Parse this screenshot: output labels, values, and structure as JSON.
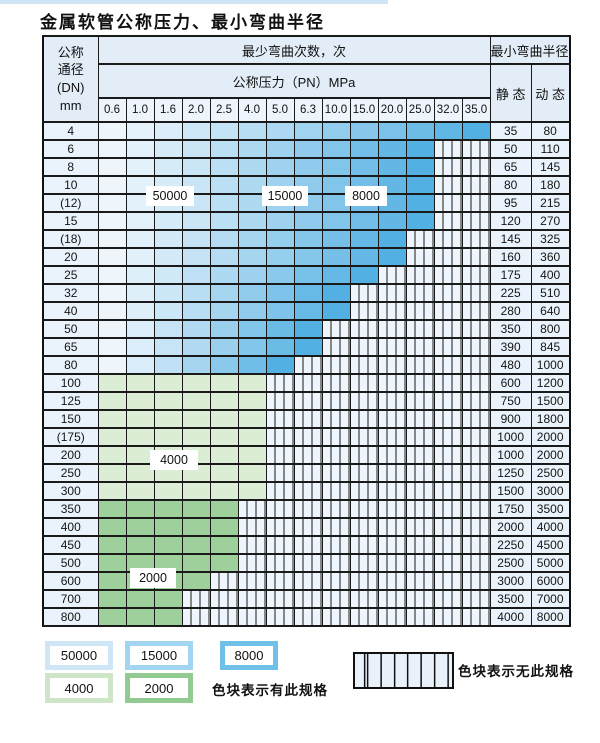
{
  "title": "金属软管公称压力、最小弯曲半径",
  "table": {
    "corner_lines": [
      "公称",
      "通径",
      "(DN)",
      "mm"
    ],
    "cycles_header": "最少弯曲次数，次",
    "pressure_header": "公称压力（PN）MPa",
    "pressure_columns": [
      "0.6",
      "1.0",
      "1.6",
      "2.0",
      "2.5",
      "4.0",
      "5.0",
      "6.3",
      "10.0",
      "15.0",
      "20.0",
      "25.0",
      "32.0",
      "35.0"
    ],
    "radius_header": "最小弯曲半径",
    "static_header": "静 态",
    "dynamic_header": "动 态",
    "rows": [
      {
        "dn": "4",
        "group": "blue",
        "max_pn": "35.0",
        "static": "35",
        "dynamic": "80"
      },
      {
        "dn": "6",
        "group": "blue",
        "max_pn": "25.0",
        "static": "50",
        "dynamic": "110"
      },
      {
        "dn": "8",
        "group": "blue",
        "max_pn": "25.0",
        "static": "65",
        "dynamic": "145"
      },
      {
        "dn": "10",
        "group": "blue",
        "max_pn": "25.0",
        "static": "80",
        "dynamic": "180"
      },
      {
        "dn": "(12)",
        "group": "blue",
        "max_pn": "25.0",
        "static": "95",
        "dynamic": "215"
      },
      {
        "dn": "15",
        "group": "blue",
        "max_pn": "25.0",
        "static": "120",
        "dynamic": "270"
      },
      {
        "dn": "(18)",
        "group": "blue",
        "max_pn": "20.0",
        "static": "145",
        "dynamic": "325"
      },
      {
        "dn": "20",
        "group": "blue",
        "max_pn": "20.0",
        "static": "160",
        "dynamic": "360"
      },
      {
        "dn": "25",
        "group": "blue",
        "max_pn": "15.0",
        "static": "175",
        "dynamic": "400"
      },
      {
        "dn": "32",
        "group": "blue",
        "max_pn": "10.0",
        "static": "225",
        "dynamic": "510"
      },
      {
        "dn": "40",
        "group": "blue",
        "max_pn": "10.0",
        "static": "280",
        "dynamic": "640"
      },
      {
        "dn": "50",
        "group": "blue",
        "max_pn": "6.3",
        "static": "350",
        "dynamic": "800"
      },
      {
        "dn": "65",
        "group": "blue",
        "max_pn": "6.3",
        "static": "390",
        "dynamic": "845"
      },
      {
        "dn": "80",
        "group": "blue",
        "max_pn": "5.0",
        "static": "480",
        "dynamic": "1000"
      },
      {
        "dn": "100",
        "group": "green_4000",
        "max_pn": "4.0",
        "static": "600",
        "dynamic": "1200"
      },
      {
        "dn": "125",
        "group": "green_4000",
        "max_pn": "4.0",
        "static": "750",
        "dynamic": "1500"
      },
      {
        "dn": "150",
        "group": "green_4000",
        "max_pn": "4.0",
        "static": "900",
        "dynamic": "1800"
      },
      {
        "dn": "(175)",
        "group": "green_4000",
        "max_pn": "4.0",
        "static": "1000",
        "dynamic": "2000"
      },
      {
        "dn": "200",
        "group": "green_4000",
        "max_pn": "4.0",
        "static": "1000",
        "dynamic": "2000"
      },
      {
        "dn": "250",
        "group": "green_4000",
        "max_pn": "4.0",
        "static": "1250",
        "dynamic": "2500"
      },
      {
        "dn": "300",
        "group": "green_4000",
        "max_pn": "4.0",
        "static": "1500",
        "dynamic": "3000"
      },
      {
        "dn": "350",
        "group": "green_2000",
        "max_pn": "2.5",
        "static": "1750",
        "dynamic": "3500"
      },
      {
        "dn": "400",
        "group": "green_2000",
        "max_pn": "2.5",
        "static": "2000",
        "dynamic": "4000"
      },
      {
        "dn": "450",
        "group": "green_2000",
        "max_pn": "2.5",
        "static": "2250",
        "dynamic": "4500"
      },
      {
        "dn": "500",
        "group": "green_2000",
        "max_pn": "2.5",
        "static": "2500",
        "dynamic": "5000"
      },
      {
        "dn": "600",
        "group": "green_2000",
        "max_pn": "2.0",
        "static": "3000",
        "dynamic": "6000"
      },
      {
        "dn": "700",
        "group": "green_2000",
        "max_pn": "1.6",
        "static": "3500",
        "dynamic": "7000"
      },
      {
        "dn": "800",
        "group": "green_2000",
        "max_pn": "1.6",
        "static": "4000",
        "dynamic": "8000"
      }
    ]
  },
  "overlays": [
    {
      "id": "label-50000",
      "text": "50000"
    },
    {
      "id": "label-15000",
      "text": "15000"
    },
    {
      "id": "label-8000",
      "text": "8000"
    },
    {
      "id": "label-4000",
      "text": "4000"
    },
    {
      "id": "label-2000",
      "text": "2000"
    }
  ],
  "legend": {
    "swatches": [
      {
        "label": "50000",
        "color": "#cfe6f7"
      },
      {
        "label": "15000",
        "color": "#a2d5f1"
      },
      {
        "label": "8000",
        "color": "#6ec0e9"
      },
      {
        "label": "4000",
        "color": "#cfe5c8"
      },
      {
        "label": "2000",
        "color": "#92cb92"
      }
    ],
    "has_spec_text": "色块表示有此规格",
    "no_spec_text": "色块表示无此规格"
  },
  "colors": {
    "blue_light": "#eef6fc",
    "blue_dark": "#53b0e3",
    "green_4000": "#dcedd6",
    "green_2000": "#9ed09c",
    "header_bg": "#e2edf8",
    "label_cell_bg": "#eaf3fb",
    "stripe_bg": "#eef5fc",
    "border": "#1a1a1a"
  }
}
